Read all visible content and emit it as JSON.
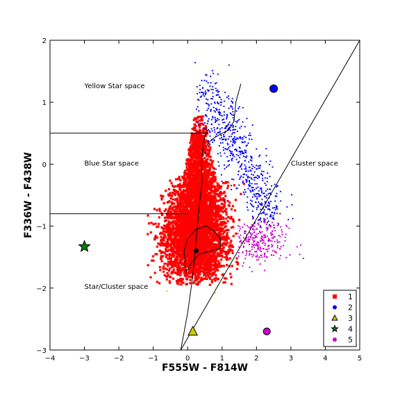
{
  "chart_data": {
    "type": "scatter",
    "xlabel": "F555W - F814W",
    "ylabel": "F336W - F438W",
    "xlim": [
      -4,
      5
    ],
    "ylim": [
      -3,
      2
    ],
    "y_inverted": true,
    "xticks": [
      "−4",
      "−3",
      "−2",
      "−1",
      "0",
      "1",
      "2",
      "3",
      "4",
      "5"
    ],
    "yticks": [
      "2",
      "1",
      "0",
      "−1",
      "−2",
      "−3"
    ],
    "grid": false,
    "legend_position": "lower-right",
    "annotations": [
      {
        "text": "Yellow Star space",
        "x": -3.0,
        "y": 1.27
      },
      {
        "text": "Blue Star space",
        "x": -3.0,
        "y": 0.02
      },
      {
        "text": "Cluster space",
        "x": 3.0,
        "y": 0.02
      },
      {
        "text": "Star/Cluster space",
        "x": -3.0,
        "y": -1.97
      }
    ],
    "boundary_lines": [
      {
        "x": [
          -4.0,
          0.6
        ],
        "y": [
          0.5,
          0.5
        ]
      },
      {
        "x": [
          -4.0,
          0.0
        ],
        "y": [
          -0.8,
          -0.8
        ]
      },
      {
        "x": [
          -0.2,
          5.0
        ],
        "y": [
          -3.0,
          2.0
        ]
      }
    ],
    "series": [
      {
        "name": "1",
        "marker": "square",
        "color": "#ff0000",
        "description": "dense cloud of cluster candidates",
        "cloud": {
          "x_range": [
            -1.2,
            1.9
          ],
          "y_range": [
            -1.95,
            0.78
          ]
        },
        "points": [
          [
            -0.8,
            -1.4
          ],
          [
            0.2,
            -1.0
          ],
          [
            0.6,
            -0.4
          ],
          [
            1.2,
            -1.2
          ],
          [
            -0.3,
            -1.7
          ],
          [
            0.1,
            0.3
          ],
          [
            0.5,
            -1.6
          ],
          [
            1.5,
            -0.9
          ]
        ]
      },
      {
        "name": "2",
        "marker": "circle",
        "color": "#0000ff",
        "description": "blue star candidates",
        "cloud": {
          "x_range": [
            0.2,
            3.0
          ],
          "y_range": [
            -1.0,
            1.75
          ]
        },
        "points": [
          [
            2.5,
            1.22
          ],
          [
            0.6,
            0.9
          ],
          [
            1.0,
            0.4
          ],
          [
            1.6,
            -0.3
          ],
          [
            2.2,
            -0.7
          ],
          [
            0.8,
            1.3
          ],
          [
            1.2,
            1.6
          ]
        ]
      },
      {
        "name": "3",
        "marker": "triangle",
        "color": "#cccc00",
        "points": [
          [
            0.15,
            -2.7
          ],
          [
            -0.6,
            -2.05
          ],
          [
            0.8,
            -2.08
          ]
        ]
      },
      {
        "name": "4",
        "marker": "star",
        "color": "#008000",
        "points": [
          [
            -3.0,
            -1.33
          ]
        ]
      },
      {
        "name": "5",
        "marker": "circle",
        "color": "#cc00cc",
        "description": "magenta cluster candidates",
        "cloud": {
          "x_range": [
            1.5,
            3.7
          ],
          "y_range": [
            -1.7,
            -0.85
          ]
        },
        "points": [
          [
            2.3,
            -2.7
          ],
          [
            1.9,
            -1.2
          ],
          [
            2.5,
            -1.4
          ],
          [
            3.0,
            -1.0
          ]
        ]
      }
    ],
    "tracks": [
      {
        "description": "thin black evolutionary track",
        "x": [
          0.55,
          0.45,
          0.4,
          0.42,
          0.35,
          0.3,
          0.25,
          0.2,
          0.15,
          0.1,
          0.05,
          0.0,
          -0.05,
          -0.1,
          -0.15,
          -0.2
        ],
        "y": [
          0.6,
          0.3,
          0.0,
          -0.3,
          -0.6,
          -0.9,
          -1.2,
          -1.5,
          -1.8,
          -2.0,
          -2.2,
          -2.4,
          -2.55,
          -2.7,
          -2.85,
          -3.0
        ]
      },
      {
        "description": "upper track branch",
        "x": [
          1.55,
          1.4,
          1.35,
          1.2,
          1.0,
          0.85,
          0.7,
          0.55
        ],
        "y": [
          1.3,
          1.0,
          0.7,
          0.55,
          0.5,
          0.45,
          0.4,
          0.3
        ]
      },
      {
        "description": "closed loop near the lower core",
        "x": [
          0.0,
          0.25,
          0.55,
          0.8,
          0.95,
          0.95,
          0.7,
          0.35,
          0.1,
          -0.05,
          -0.1,
          0.0
        ],
        "y": [
          -1.2,
          -1.05,
          -1.0,
          -1.1,
          -1.2,
          -1.35,
          -1.4,
          -1.45,
          -1.6,
          -1.75,
          -1.4,
          -1.2
        ]
      }
    ],
    "highlight_points": [
      {
        "x": 0.25,
        "y": -1.4,
        "color": "#000000"
      }
    ]
  }
}
